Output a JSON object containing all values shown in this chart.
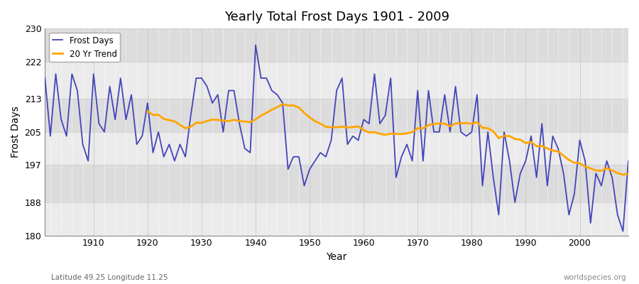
{
  "title": "Yearly Total Frost Days 1901 - 2009",
  "xlabel": "Year",
  "ylabel": "Frost Days",
  "ylim": [
    180,
    230
  ],
  "yticks": [
    180,
    188,
    197,
    205,
    213,
    222,
    230
  ],
  "xlim": [
    1901,
    2009
  ],
  "line_color": "#4444bb",
  "trend_color": "#ffa500",
  "fig_bg": "#ffffff",
  "plot_bg_light": "#ebebeb",
  "plot_bg_dark": "#dcdcdc",
  "legend_labels": [
    "Frost Days",
    "20 Yr Trend"
  ],
  "footnote_left": "Latitude 49.25 Longitude 11.25",
  "footnote_right": "worldspecies.org",
  "years": [
    1901,
    1902,
    1903,
    1904,
    1905,
    1906,
    1907,
    1908,
    1909,
    1910,
    1911,
    1912,
    1913,
    1914,
    1915,
    1916,
    1917,
    1918,
    1919,
    1920,
    1921,
    1922,
    1923,
    1924,
    1925,
    1926,
    1927,
    1928,
    1929,
    1930,
    1931,
    1932,
    1933,
    1934,
    1935,
    1936,
    1937,
    1938,
    1939,
    1940,
    1941,
    1942,
    1943,
    1944,
    1945,
    1946,
    1947,
    1948,
    1949,
    1950,
    1951,
    1952,
    1953,
    1954,
    1955,
    1956,
    1957,
    1958,
    1959,
    1960,
    1961,
    1962,
    1963,
    1964,
    1965,
    1966,
    1967,
    1968,
    1969,
    1970,
    1971,
    1972,
    1973,
    1974,
    1975,
    1976,
    1977,
    1978,
    1979,
    1980,
    1981,
    1982,
    1983,
    1984,
    1985,
    1986,
    1987,
    1988,
    1989,
    1990,
    1991,
    1992,
    1993,
    1994,
    1995,
    1996,
    1997,
    1998,
    1999,
    2000,
    2001,
    2002,
    2003,
    2004,
    2005,
    2006,
    2007,
    2008,
    2009
  ],
  "frost_days": [
    218,
    204,
    219,
    208,
    204,
    219,
    215,
    202,
    198,
    219,
    207,
    205,
    216,
    208,
    218,
    208,
    214,
    202,
    204,
    212,
    200,
    205,
    199,
    202,
    198,
    202,
    199,
    209,
    218,
    218,
    216,
    212,
    214,
    205,
    215,
    215,
    207,
    201,
    200,
    226,
    218,
    218,
    215,
    214,
    212,
    196,
    199,
    199,
    192,
    196,
    198,
    200,
    199,
    203,
    215,
    218,
    202,
    204,
    203,
    208,
    207,
    219,
    207,
    209,
    218,
    194,
    199,
    202,
    198,
    215,
    198,
    215,
    205,
    205,
    214,
    205,
    216,
    205,
    204,
    205,
    214,
    192,
    205,
    194,
    185,
    205,
    198,
    188,
    195,
    198,
    204,
    194,
    207,
    192,
    204,
    201,
    195,
    185,
    190,
    203,
    198,
    183,
    195,
    192,
    198,
    194,
    185,
    181,
    198
  ]
}
